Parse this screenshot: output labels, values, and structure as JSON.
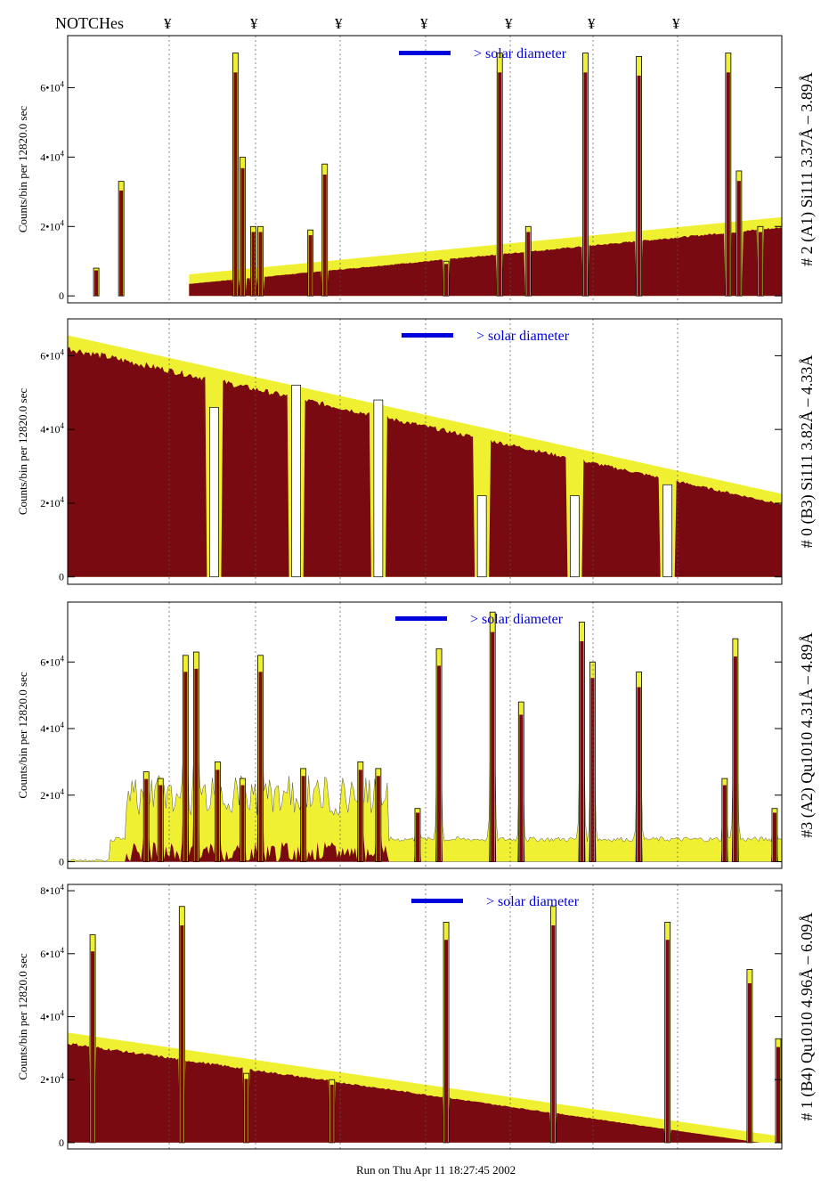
{
  "header": {
    "notch_label": "NOTCHes",
    "notch_symbol": "¥"
  },
  "footer": {
    "run_text": "Run on Thu Apr 11 18:27:45 2002"
  },
  "colors": {
    "dark_red": "#7a0a12",
    "yellow": "#f0f033",
    "blue": "#0000dd",
    "black": "#000000"
  },
  "chart_data": [
    {
      "type": "area",
      "title": "# 2 (A1) Si111  3.37Å – 3.89Å",
      "ylabel": "Counts/bin per  12820.0 sec",
      "yticks": [
        {
          "value": 0,
          "label": "0"
        },
        {
          "value": 20000,
          "label": "2•10",
          "exp": "4"
        },
        {
          "value": 40000,
          "label": "4•10",
          "exp": "4"
        },
        {
          "value": 60000,
          "label": "6•10",
          "exp": "4"
        }
      ],
      "ylim": [
        -2000,
        75000
      ],
      "legend": "> solar diameter",
      "envelope": {
        "type": "linear",
        "x0": 0.17,
        "y0": 3500,
        "x1": 1.0,
        "y1": 20000,
        "start": 0.17
      },
      "spikes": [
        {
          "x": 0.04,
          "y": 8000
        },
        {
          "x": 0.075,
          "y": 33000
        },
        {
          "x": 0.235,
          "y": 70000
        },
        {
          "x": 0.245,
          "y": 40000
        },
        {
          "x": 0.26,
          "y": 20000
        },
        {
          "x": 0.27,
          "y": 20000
        },
        {
          "x": 0.34,
          "y": 19000
        },
        {
          "x": 0.36,
          "y": 38000
        },
        {
          "x": 0.53,
          "y": 10000
        },
        {
          "x": 0.605,
          "y": 70000
        },
        {
          "x": 0.645,
          "y": 20000
        },
        {
          "x": 0.725,
          "y": 70000
        },
        {
          "x": 0.8,
          "y": 69000
        },
        {
          "x": 0.925,
          "y": 70000
        },
        {
          "x": 0.94,
          "y": 36000
        },
        {
          "x": 0.97,
          "y": 20000
        }
      ]
    },
    {
      "type": "area",
      "title": "# 0 (B3) Si111  3.82Å – 4.33Å",
      "ylabel": "Counts/bin per  12820.0 sec",
      "yticks": [
        {
          "value": 0,
          "label": "0"
        },
        {
          "value": 20000,
          "label": "2•10",
          "exp": "4"
        },
        {
          "value": 40000,
          "label": "4•10",
          "exp": "4"
        },
        {
          "value": 60000,
          "label": "6•10",
          "exp": "4"
        }
      ],
      "ylim": [
        -2000,
        70000
      ],
      "legend": "> solar diameter",
      "envelope": {
        "type": "linear",
        "x0": 0.0,
        "y0": 63000,
        "x1": 1.0,
        "y1": 20000,
        "start": 0.0
      },
      "dips": [
        {
          "x": 0.205,
          "y": 46000
        },
        {
          "x": 0.32,
          "y": 52000
        },
        {
          "x": 0.435,
          "y": 48000
        },
        {
          "x": 0.58,
          "y": 22000
        },
        {
          "x": 0.71,
          "y": 22000
        },
        {
          "x": 0.84,
          "y": 25000
        }
      ]
    },
    {
      "type": "area",
      "title": "#3 (A2) Qu1010  4.31Å – 4.89Å",
      "ylabel": "Counts/bin per  12820.0 sec",
      "yticks": [
        {
          "value": 0,
          "label": "0"
        },
        {
          "value": 20000,
          "label": "2•10",
          "exp": "4"
        },
        {
          "value": 40000,
          "label": "4•10",
          "exp": "4"
        },
        {
          "value": 60000,
          "label": "6•10",
          "exp": "4"
        }
      ],
      "ylim": [
        -2000,
        78000
      ],
      "legend": "> solar diameter",
      "spikes": [
        {
          "x": 0.11,
          "y": 27000
        },
        {
          "x": 0.13,
          "y": 25000
        },
        {
          "x": 0.165,
          "y": 62000
        },
        {
          "x": 0.18,
          "y": 63000
        },
        {
          "x": 0.21,
          "y": 30000
        },
        {
          "x": 0.245,
          "y": 25000
        },
        {
          "x": 0.27,
          "y": 62000
        },
        {
          "x": 0.33,
          "y": 28000
        },
        {
          "x": 0.41,
          "y": 30000
        },
        {
          "x": 0.435,
          "y": 28000
        },
        {
          "x": 0.49,
          "y": 16000
        },
        {
          "x": 0.52,
          "y": 64000
        },
        {
          "x": 0.595,
          "y": 75000
        },
        {
          "x": 0.635,
          "y": 48000
        },
        {
          "x": 0.72,
          "y": 72000
        },
        {
          "x": 0.735,
          "y": 60000
        },
        {
          "x": 0.8,
          "y": 57000
        },
        {
          "x": 0.92,
          "y": 25000
        },
        {
          "x": 0.935,
          "y": 67000
        },
        {
          "x": 0.99,
          "y": 16000
        }
      ]
    },
    {
      "type": "area",
      "title": "# 1 (B4) Qu1010 4.96Å – 6.09Å",
      "ylabel": "Counts/bin per  12820.0 sec",
      "yticks": [
        {
          "value": 0,
          "label": "0"
        },
        {
          "value": 20000,
          "label": "2•10",
          "exp": "4"
        },
        {
          "value": 40000,
          "label": "4•10",
          "exp": "4"
        },
        {
          "value": 60000,
          "label": "6•10",
          "exp": "4"
        },
        {
          "value": 80000,
          "label": "8•10",
          "exp": "4"
        }
      ],
      "ylim": [
        -2000,
        82000
      ],
      "legend": "> solar diameter",
      "envelope": {
        "type": "linear",
        "x0": 0.0,
        "y0": 32000,
        "x1": 0.97,
        "y1": 0,
        "start": 0.0
      },
      "spikes": [
        {
          "x": 0.035,
          "y": 66000
        },
        {
          "x": 0.16,
          "y": 75000
        },
        {
          "x": 0.25,
          "y": 22000
        },
        {
          "x": 0.37,
          "y": 20000
        },
        {
          "x": 0.53,
          "y": 70000
        },
        {
          "x": 0.68,
          "y": 75000
        },
        {
          "x": 0.84,
          "y": 70000
        },
        {
          "x": 0.955,
          "y": 55000
        },
        {
          "x": 0.995,
          "y": 33000
        }
      ]
    }
  ]
}
